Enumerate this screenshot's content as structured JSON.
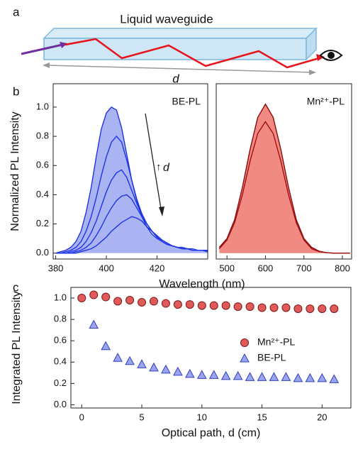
{
  "panel_labels": [
    "a",
    "b",
    "c"
  ],
  "diagram": {
    "title": "Liquid waveguide",
    "length_label": "d"
  },
  "chart_data": [
    {
      "type": "line",
      "ylabel": "Normalized PL Intensity",
      "xlabel": "Wavelength (nm)",
      "annotation": "BE-PL",
      "arrow_label": "d",
      "x": [
        380,
        382,
        384,
        386,
        388,
        390,
        392,
        394,
        396,
        398,
        400,
        402,
        404,
        406,
        408,
        410,
        412,
        414,
        416,
        418,
        420,
        422,
        424,
        426,
        428,
        430,
        432,
        434,
        436,
        438,
        440
      ],
      "series": [
        {
          "color": "#1f35e6",
          "values": [
            0,
            0.01,
            0.02,
            0.04,
            0.08,
            0.15,
            0.28,
            0.45,
            0.66,
            0.85,
            0.96,
            1.0,
            0.98,
            0.86,
            0.68,
            0.5,
            0.36,
            0.25,
            0.18,
            0.13,
            0.1,
            0.08,
            0.06,
            0.05,
            0.04,
            0.03,
            0.03,
            0.02,
            0.02,
            0.02,
            0.01
          ]
        },
        {
          "color": "#1f35e6",
          "values": [
            0,
            0,
            0.01,
            0.02,
            0.04,
            0.08,
            0.15,
            0.25,
            0.38,
            0.53,
            0.66,
            0.76,
            0.8,
            0.76,
            0.64,
            0.5,
            0.37,
            0.27,
            0.2,
            0.15,
            0.11,
            0.08,
            0.06,
            0.05,
            0.04,
            0.03,
            0.03,
            0.02,
            0.02,
            0.02,
            0.01
          ]
        },
        {
          "color": "#1f35e6",
          "values": [
            0,
            0,
            0,
            0.01,
            0.02,
            0.04,
            0.08,
            0.14,
            0.22,
            0.32,
            0.42,
            0.5,
            0.55,
            0.57,
            0.52,
            0.43,
            0.34,
            0.26,
            0.2,
            0.15,
            0.11,
            0.08,
            0.06,
            0.05,
            0.04,
            0.03,
            0.03,
            0.02,
            0.02,
            0.02,
            0.01
          ]
        },
        {
          "color": "#1f35e6",
          "values": [
            0,
            0,
            0,
            0,
            0.01,
            0.02,
            0.04,
            0.07,
            0.12,
            0.18,
            0.25,
            0.31,
            0.36,
            0.39,
            0.4,
            0.37,
            0.31,
            0.25,
            0.2,
            0.15,
            0.11,
            0.08,
            0.06,
            0.05,
            0.04,
            0.03,
            0.03,
            0.02,
            0.02,
            0.02,
            0.01
          ]
        },
        {
          "color": "#1f35e6",
          "values": [
            0,
            0,
            0,
            0,
            0,
            0.01,
            0.02,
            0.03,
            0.05,
            0.08,
            0.11,
            0.15,
            0.18,
            0.21,
            0.23,
            0.25,
            0.24,
            0.22,
            0.18,
            0.15,
            0.12,
            0.09,
            0.07,
            0.05,
            0.04,
            0.04,
            0.03,
            0.03,
            0.02,
            0.02,
            0.02
          ]
        }
      ],
      "fill": "#aab4f2",
      "xlim": [
        379,
        440
      ],
      "xticks": [
        380,
        400,
        420
      ],
      "ylim": [
        -0.04,
        1.16
      ],
      "yticks": [
        {
          "value": 0,
          "label": "0.0"
        },
        0.2,
        0.4,
        0.6,
        0.8,
        {
          "value": 1,
          "label": "1.0"
        }
      ]
    },
    {
      "type": "line",
      "annotation": "Mn²⁺-PL",
      "x": [
        480,
        500,
        520,
        540,
        560,
        580,
        600,
        620,
        640,
        660,
        680,
        700,
        720,
        740,
        760,
        780,
        800,
        820
      ],
      "series": [
        {
          "color": "#8b0a0a",
          "values": [
            0.04,
            0.1,
            0.23,
            0.45,
            0.71,
            0.93,
            1.02,
            0.93,
            0.71,
            0.45,
            0.23,
            0.1,
            0.04,
            0.013,
            0.003,
            0,
            0,
            0
          ]
        },
        {
          "color": "#a01010",
          "values": [
            0.03,
            0.09,
            0.21,
            0.4,
            0.63,
            0.82,
            0.9,
            0.82,
            0.63,
            0.4,
            0.21,
            0.09,
            0.03,
            0.01,
            0.003,
            0,
            0,
            0
          ]
        }
      ],
      "fill": "#f28a84",
      "xlim": [
        472,
        824
      ],
      "xticks": [
        500,
        600,
        700,
        800
      ],
      "ylim": [
        -0.04,
        1.16
      ]
    },
    {
      "type": "scatter",
      "ylabel": "Integrated PL Intensity",
      "xlabel": "Optical path, d (cm)",
      "series": [
        {
          "name": "Mn²⁺-PL",
          "color": "#e05a5a",
          "marker": "circle",
          "x": [
            0,
            1,
            2,
            3,
            4,
            5,
            6,
            7,
            8,
            9,
            10,
            11,
            12,
            13,
            14,
            15,
            16,
            17,
            18,
            19,
            20,
            21
          ],
          "values": [
            1.0,
            1.03,
            1.01,
            0.97,
            0.98,
            0.96,
            0.97,
            0.95,
            0.94,
            0.94,
            0.93,
            0.93,
            0.93,
            0.92,
            0.92,
            0.91,
            0.91,
            0.91,
            0.9,
            0.9,
            0.9,
            0.9
          ]
        },
        {
          "name": "BE-PL",
          "color": "#9aa4ef",
          "marker": "triangle",
          "x": [
            1,
            2,
            3,
            4,
            5,
            6,
            7,
            8,
            9,
            10,
            11,
            12,
            13,
            14,
            15,
            16,
            17,
            18,
            19,
            20,
            21
          ],
          "values": [
            0.75,
            0.55,
            0.44,
            0.41,
            0.38,
            0.35,
            0.33,
            0.31,
            0.29,
            0.28,
            0.28,
            0.27,
            0.27,
            0.26,
            0.26,
            0.26,
            0.26,
            0.25,
            0.25,
            0.25,
            0.24
          ]
        }
      ],
      "xlim": [
        -0.9,
        22.4
      ],
      "xticks": [
        0,
        5,
        10,
        15,
        20
      ],
      "ylim": [
        -0.03,
        1.1
      ],
      "yticks": [
        {
          "value": 0,
          "label": "0.0"
        },
        0.2,
        0.4,
        0.6,
        0.8,
        {
          "value": 1,
          "label": "1.0"
        }
      ],
      "legend": "right"
    }
  ]
}
